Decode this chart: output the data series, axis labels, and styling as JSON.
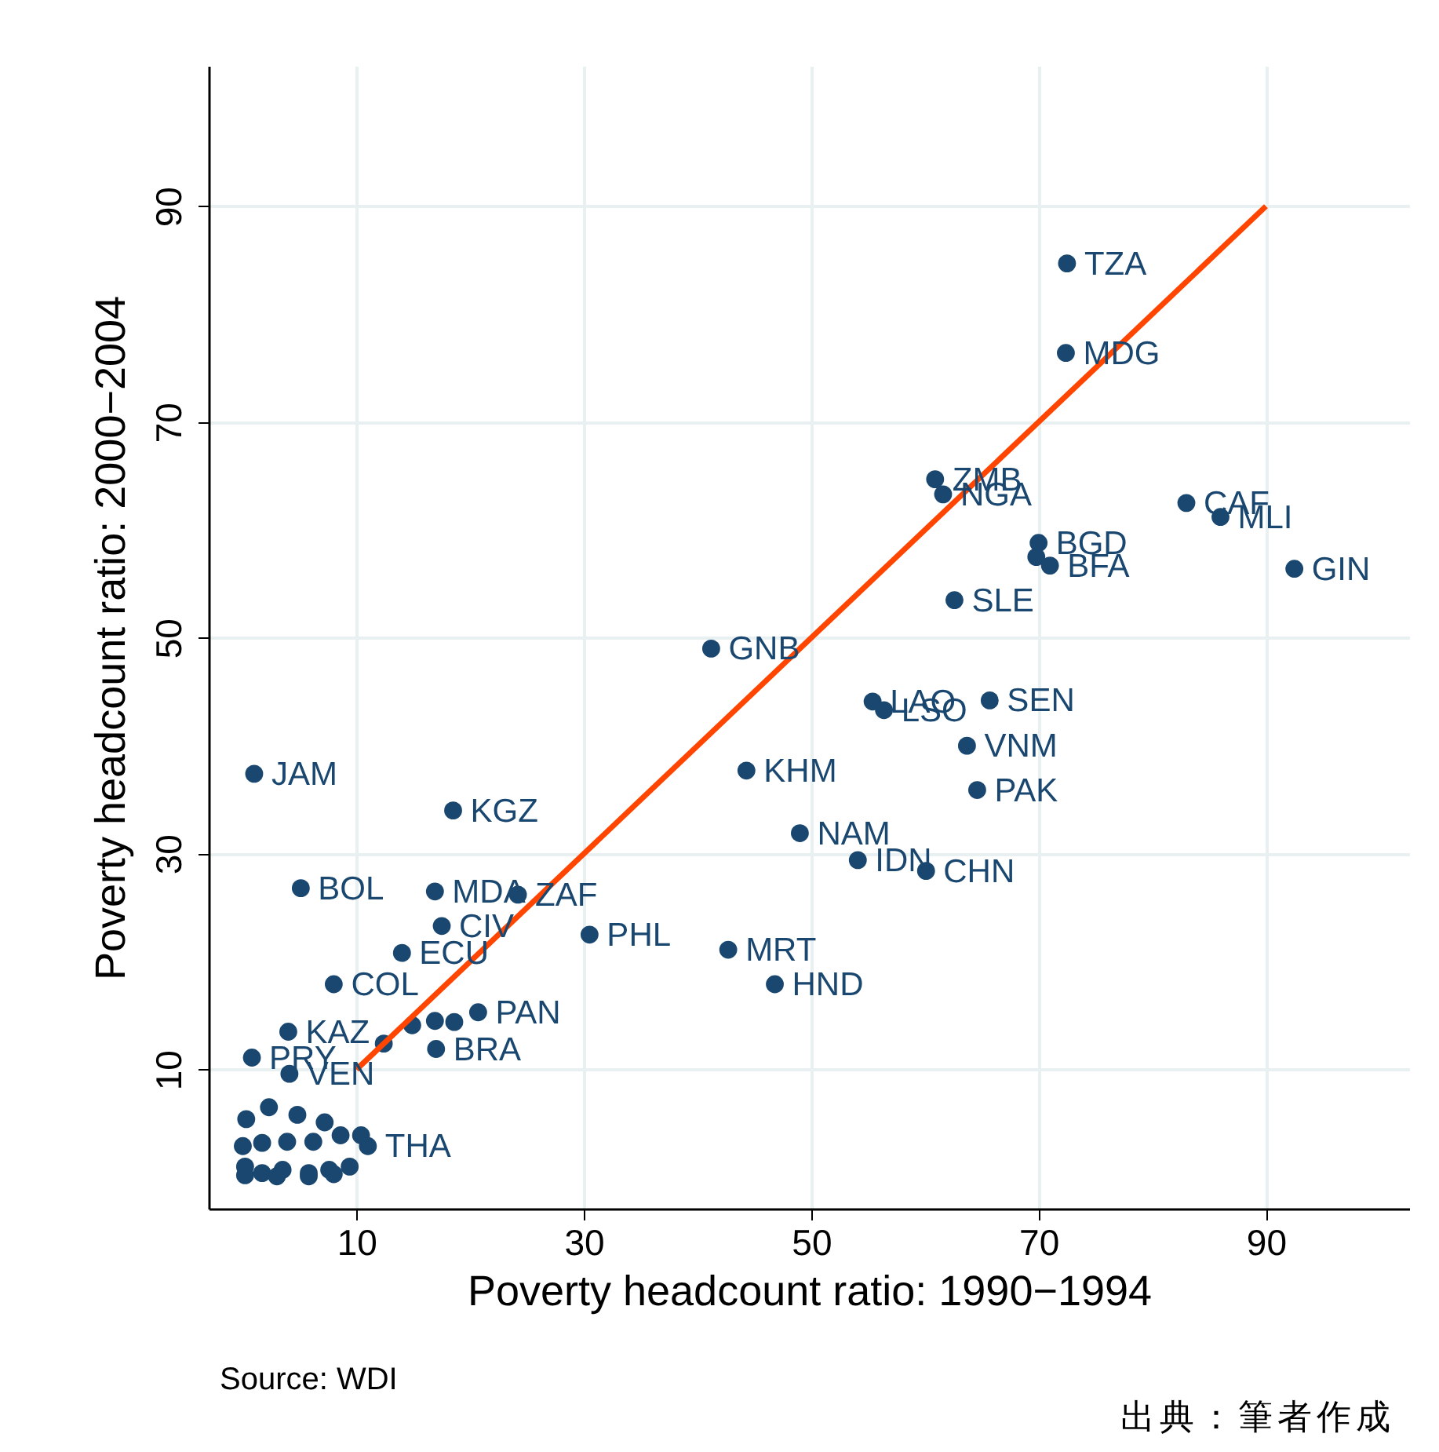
{
  "chart_data": {
    "type": "scatter",
    "xlabel": "Poverty headcount ratio: 1990−1994",
    "ylabel": "Poverty headcount ratio: 2000−2004",
    "xlim": [
      -3,
      102.6
    ],
    "ylim": [
      -2.9,
      103
    ],
    "xticks": [
      10,
      30,
      50,
      70,
      90
    ],
    "yticks": [
      10,
      30,
      50,
      70,
      90
    ],
    "grid": true,
    "series": [
      {
        "marker": "circle",
        "color": "#1a476f",
        "x": [
          72.5,
          72.4,
          60.9,
          61.6,
          83.0,
          86.0,
          92.5,
          70.0,
          69.8,
          71.0,
          62.6,
          41.2,
          55.4,
          56.4,
          65.7,
          63.7,
          64.6,
          44.3,
          49.0,
          54.1,
          60.1,
          30.5,
          42.7,
          46.8,
          1.0,
          18.5,
          5.1,
          16.9,
          24.2,
          17.5,
          14.0,
          8.0,
          20.7,
          4.0,
          0.8,
          4.1,
          12.4,
          14.9,
          16.9,
          18.6,
          17.0,
          2.3,
          0.3,
          4.8,
          7.2,
          0.0,
          1.7,
          3.9,
          6.2,
          8.6,
          10.4,
          0.2,
          1.7,
          3.5,
          5.8,
          7.6,
          9.4,
          0.2,
          3.0,
          5.8,
          8.0,
          11.0
        ],
        "values": [
          84.7,
          76.4,
          64.7,
          63.3,
          62.5,
          61.2,
          56.4,
          58.8,
          57.5,
          56.7,
          53.5,
          49.0,
          44.1,
          43.3,
          44.2,
          40.0,
          35.9,
          37.7,
          31.9,
          29.4,
          28.4,
          22.5,
          21.1,
          17.9,
          37.4,
          34.0,
          26.8,
          26.5,
          26.2,
          23.3,
          20.8,
          17.9,
          15.3,
          13.5,
          11.1,
          9.6,
          12.4,
          14.1,
          14.5,
          14.4,
          11.9,
          6.5,
          5.4,
          5.8,
          5.1,
          2.9,
          3.2,
          3.3,
          3.3,
          3.9,
          3.9,
          1.0,
          0.4,
          0.7,
          0.4,
          0.7,
          1.0,
          0.2,
          0.1,
          0.1,
          0.3,
          2.9
        ]
      },
      {
        "type": "line",
        "color": "#ff4500",
        "x": [
          10,
          90
        ],
        "values": [
          10,
          90
        ]
      }
    ],
    "annotations": [
      {
        "text": "TZA",
        "x": 72.5,
        "y": 84.7
      },
      {
        "text": "MDG",
        "x": 72.4,
        "y": 76.4
      },
      {
        "text": "ZMB",
        "x": 60.9,
        "y": 64.7
      },
      {
        "text": "NGA",
        "x": 61.6,
        "y": 63.3
      },
      {
        "text": "CAF",
        "x": 83.0,
        "y": 62.5
      },
      {
        "text": "MLI",
        "x": 86.0,
        "y": 61.2
      },
      {
        "text": "GIN",
        "x": 92.5,
        "y": 56.4
      },
      {
        "text": "BGD",
        "x": 70.0,
        "y": 58.8
      },
      {
        "text": "BFA",
        "x": 71.0,
        "y": 56.7
      },
      {
        "text": "SLE",
        "x": 62.6,
        "y": 53.5
      },
      {
        "text": "GNB",
        "x": 41.2,
        "y": 49.0
      },
      {
        "text": "LAO",
        "x": 55.4,
        "y": 44.1
      },
      {
        "text": "LSO",
        "x": 56.4,
        "y": 43.3
      },
      {
        "text": "SEN",
        "x": 65.7,
        "y": 44.2
      },
      {
        "text": "VNM",
        "x": 63.7,
        "y": 40.0
      },
      {
        "text": "PAK",
        "x": 64.6,
        "y": 35.9
      },
      {
        "text": "KHM",
        "x": 44.3,
        "y": 37.7
      },
      {
        "text": "NAM",
        "x": 49.0,
        "y": 31.9
      },
      {
        "text": "IDN",
        "x": 54.1,
        "y": 29.4
      },
      {
        "text": "CHN",
        "x": 60.1,
        "y": 28.4
      },
      {
        "text": "PHL",
        "x": 30.5,
        "y": 22.5
      },
      {
        "text": "MRT",
        "x": 42.7,
        "y": 21.1
      },
      {
        "text": "HND",
        "x": 46.8,
        "y": 17.9
      },
      {
        "text": "JAM",
        "x": 1.0,
        "y": 37.4
      },
      {
        "text": "KGZ",
        "x": 18.5,
        "y": 34.0
      },
      {
        "text": "BOL",
        "x": 5.1,
        "y": 26.8
      },
      {
        "text": "MDA",
        "x": 16.9,
        "y": 26.5
      },
      {
        "text": "ZAF",
        "x": 24.2,
        "y": 26.2
      },
      {
        "text": "CIV",
        "x": 17.5,
        "y": 23.3
      },
      {
        "text": "ECU",
        "x": 14.0,
        "y": 20.8
      },
      {
        "text": "COL",
        "x": 8.0,
        "y": 17.9
      },
      {
        "text": "PAN",
        "x": 20.7,
        "y": 15.3
      },
      {
        "text": "KAZ",
        "x": 4.0,
        "y": 13.5
      },
      {
        "text": "PRY",
        "x": 0.8,
        "y": 11.1
      },
      {
        "text": "VEN",
        "x": 4.1,
        "y": 9.6
      },
      {
        "text": "BRA",
        "x": 17.0,
        "y": 11.9
      },
      {
        "text": "THA",
        "x": 11.0,
        "y": 2.9
      },
      "Source: WDI",
      "出典：筆者作成"
    ]
  }
}
